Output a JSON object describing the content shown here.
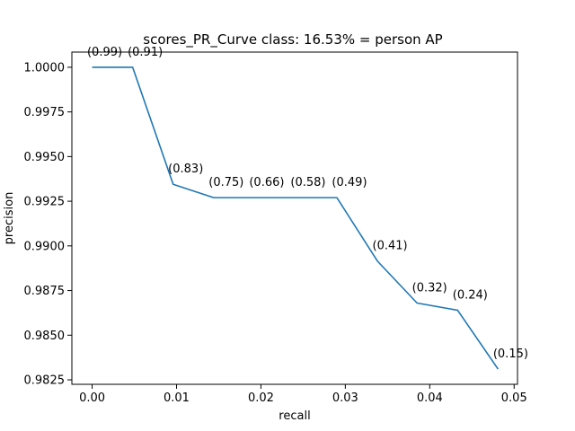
{
  "chart_data": {
    "type": "line",
    "title": "scores_PR_Curve class: 16.53% = person AP",
    "xlabel": "recall",
    "ylabel": "precision",
    "xlim": [
      -0.0024,
      0.0504
    ],
    "ylim": [
      0.98225,
      1.00085
    ],
    "grid": false,
    "xticks": [
      0.0,
      0.01,
      0.02,
      0.03,
      0.04,
      0.05
    ],
    "xtick_labels": [
      "0.00",
      "0.01",
      "0.02",
      "0.03",
      "0.04",
      "0.05"
    ],
    "yticks": [
      0.9825,
      0.985,
      0.9875,
      0.99,
      0.9925,
      0.995,
      0.9975,
      1.0
    ],
    "ytick_labels": [
      "0.9825",
      "0.9850",
      "0.9875",
      "0.9900",
      "0.9925",
      "0.9950",
      "0.9975",
      "1.0000"
    ],
    "series": [
      {
        "color": "#1f77b4",
        "x": [
          0.0,
          0.0048,
          0.0096,
          0.0144,
          0.0192,
          0.0241,
          0.029,
          0.0338,
          0.0385,
          0.0433,
          0.0481
        ],
        "y": [
          1.0,
          1.0,
          0.99345,
          0.9927,
          0.9927,
          0.9927,
          0.9927,
          0.98915,
          0.9868,
          0.9864,
          0.9831
        ]
      }
    ],
    "annotations": [
      {
        "text": "(0.99)",
        "x": 0.0,
        "y": 1.0
      },
      {
        "text": "(0.91)",
        "x": 0.0048,
        "y": 1.0
      },
      {
        "text": "(0.83)",
        "x": 0.0096,
        "y": 0.99345
      },
      {
        "text": "(0.75)",
        "x": 0.0144,
        "y": 0.9927
      },
      {
        "text": "(0.66)",
        "x": 0.0192,
        "y": 0.9927
      },
      {
        "text": "(0.58)",
        "x": 0.0241,
        "y": 0.9927
      },
      {
        "text": "(0.49)",
        "x": 0.029,
        "y": 0.9927
      },
      {
        "text": "(0.41)",
        "x": 0.0338,
        "y": 0.98915
      },
      {
        "text": "(0.32)",
        "x": 0.0385,
        "y": 0.9868
      },
      {
        "text": "(0.24)",
        "x": 0.0433,
        "y": 0.9864
      },
      {
        "text": "(0.15)",
        "x": 0.0481,
        "y": 0.9831
      }
    ]
  }
}
